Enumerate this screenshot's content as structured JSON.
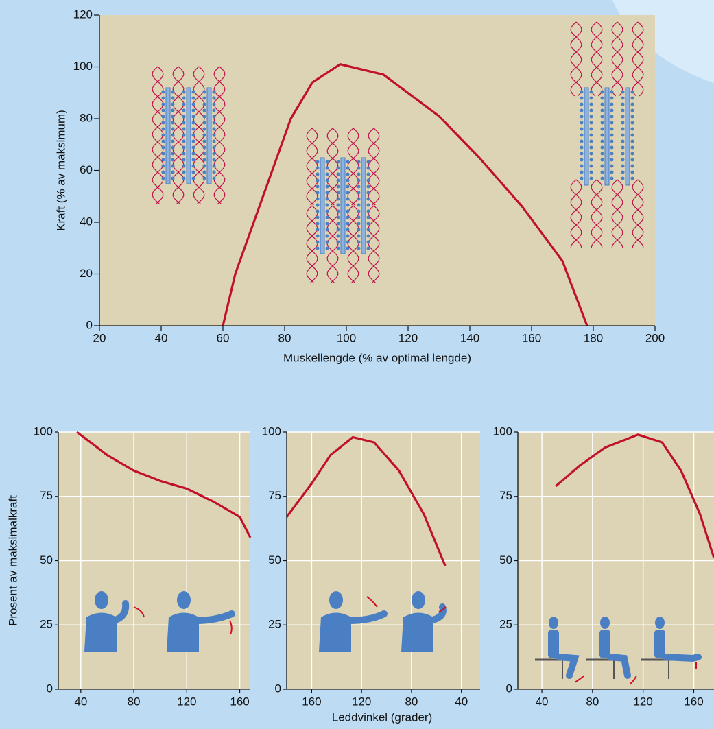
{
  "chart_data": [
    {
      "type": "line",
      "x_label": "Muskellengde (% av optimal lengde)",
      "y_label": "Kraft (% av maksimum)",
      "x": [
        60,
        64,
        70,
        76,
        82,
        89,
        98,
        112,
        130,
        143,
        157,
        170,
        178
      ],
      "values": [
        0,
        20,
        40,
        60,
        80,
        94,
        101,
        97,
        81,
        65,
        46,
        25,
        0
      ],
      "color": "#c0102a",
      "background": "#ddd4b5",
      "xlim": [
        20,
        200
      ],
      "ylim": [
        0,
        120
      ],
      "xticks": [
        20,
        40,
        60,
        80,
        100,
        120,
        140,
        160,
        180,
        200
      ],
      "yticks": [
        0,
        20,
        40,
        60,
        80,
        100,
        120
      ],
      "grid": false
    },
    {
      "type": "line",
      "y_label": "Prosent av maksimalkraft",
      "x": [
        37,
        50,
        60,
        80,
        100,
        120,
        140,
        160,
        168
      ],
      "values": [
        100,
        95,
        91,
        85,
        81,
        78,
        73,
        67,
        59
      ],
      "color": "#c0102a",
      "background": "#ddd4b5",
      "xlim": [
        23,
        168
      ],
      "ylim": [
        0,
        100
      ],
      "xticks": [
        40,
        80,
        120,
        160
      ],
      "yticks": [
        0,
        25,
        50,
        75,
        100
      ],
      "grid": true
    },
    {
      "type": "line",
      "x_label": "Leddvinkel (grader)",
      "x": [
        180,
        160,
        145,
        127,
        110,
        90,
        70,
        53
      ],
      "values": [
        67,
        80,
        91,
        98,
        96,
        85,
        68,
        48
      ],
      "color": "#c0102a",
      "background": "#ddd4b5",
      "xlim": [
        180,
        25
      ],
      "ylim": [
        0,
        100
      ],
      "xticks": [
        160,
        120,
        80,
        40
      ],
      "yticks": [
        0,
        25,
        50,
        75,
        100
      ],
      "grid": true
    },
    {
      "type": "line",
      "x": [
        51,
        70,
        90,
        116,
        135,
        150,
        165,
        176
      ],
      "values": [
        79,
        87,
        94,
        99,
        96,
        85,
        68,
        51
      ],
      "color": "#c0102a",
      "background": "#ddd4b5",
      "xlim": [
        21,
        176
      ],
      "ylim": [
        0,
        100
      ],
      "xticks": [
        40,
        80,
        120,
        160
      ],
      "yticks": [
        0,
        25,
        50,
        75,
        100
      ],
      "grid": true
    }
  ]
}
